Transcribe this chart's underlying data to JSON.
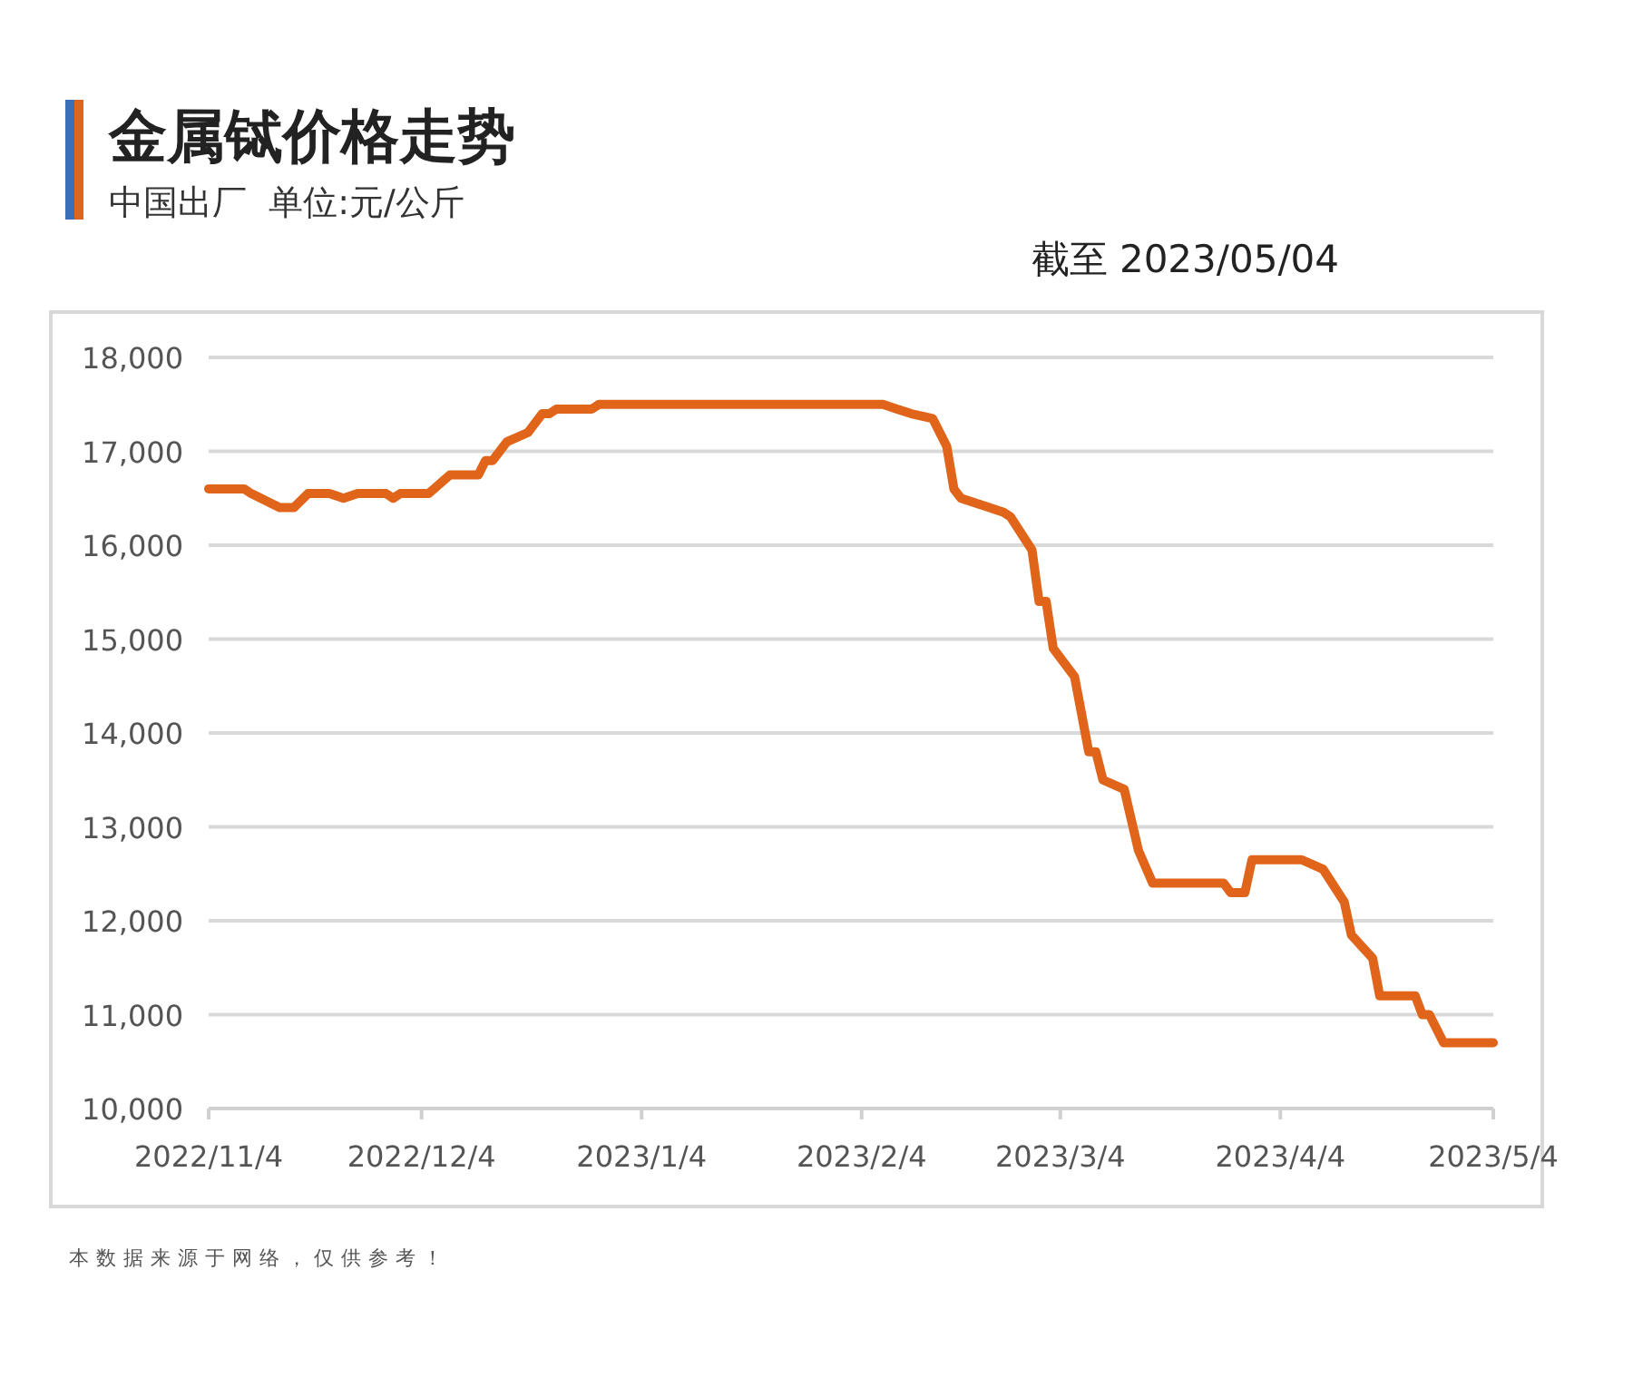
{
  "chart_data": {
    "type": "line",
    "title": "金属铽价格走势",
    "subtitle": "中国出厂  单位:元/公斤",
    "annotations": [
      "截至 2023/05/04",
      "本数据来源于网络，仅供参考！"
    ],
    "x": [
      "2022-11-04",
      "2022-11-09",
      "2022-11-10",
      "2022-11-14",
      "2022-11-16",
      "2022-11-18",
      "2022-11-21",
      "2022-11-23",
      "2022-11-25",
      "2022-11-29",
      "2022-11-30",
      "2022-12-01",
      "2022-12-05",
      "2022-12-08",
      "2022-12-12",
      "2022-12-13",
      "2022-12-14",
      "2022-12-16",
      "2022-12-19",
      "2022-12-21",
      "2022-12-22",
      "2022-12-23",
      "2022-12-28",
      "2022-12-29",
      "2023-02-07",
      "2023-02-09",
      "2023-02-11",
      "2023-02-14",
      "2023-02-16",
      "2023-02-17",
      "2023-02-18",
      "2023-02-22",
      "2023-02-24",
      "2023-02-25",
      "2023-02-28",
      "2023-03-01",
      "2023-03-02",
      "2023-03-03",
      "2023-03-06",
      "2023-03-08",
      "2023-03-09",
      "2023-03-10",
      "2023-03-13",
      "2023-03-15",
      "2023-03-17",
      "2023-03-27",
      "2023-03-28",
      "2023-03-30",
      "2023-03-31",
      "2023-04-07",
      "2023-04-10",
      "2023-04-13",
      "2023-04-14",
      "2023-04-17",
      "2023-04-18",
      "2023-04-23",
      "2023-04-24",
      "2023-04-25",
      "2023-04-27",
      "2023-05-04"
    ],
    "series": [
      {
        "color": "#e0641a",
        "values": [
          16600,
          16600,
          16550,
          16400,
          16400,
          16550,
          16550,
          16500,
          16550,
          16550,
          16500,
          16550,
          16550,
          16750,
          16750,
          16900,
          16900,
          17100,
          17200,
          17400,
          17400,
          17450,
          17450,
          17500,
          17500,
          17450,
          17400,
          17350,
          17050,
          16600,
          16500,
          16400,
          16350,
          16300,
          15950,
          15400,
          15400,
          14900,
          14600,
          13800,
          13800,
          13500,
          13400,
          12750,
          12400,
          12400,
          12300,
          12300,
          12650,
          12650,
          12550,
          12200,
          11850,
          11600,
          11200,
          11200,
          11000,
          11000,
          10700,
          10700
        ]
      }
    ],
    "xlim": [
      "2022-11-04",
      "2023-05-04"
    ],
    "xticks": [
      {
        "value": "2022-11-04",
        "label": "2022/11/4"
      },
      {
        "value": "2022-12-04",
        "label": "2022/12/4"
      },
      {
        "value": "2023-01-04",
        "label": "2023/1/4"
      },
      {
        "value": "2023-02-04",
        "label": "2023/2/4"
      },
      {
        "value": "2023-03-04",
        "label": "2023/3/4"
      },
      {
        "value": "2023-04-04",
        "label": "2023/4/4"
      },
      {
        "value": "2023-05-04",
        "label": "2023/5/4"
      }
    ],
    "ylim": [
      10000,
      18000
    ],
    "yticks": [
      {
        "value": 10000,
        "label": "10,000"
      },
      {
        "value": 11000,
        "label": "11,000"
      },
      {
        "value": 12000,
        "label": "12,000"
      },
      {
        "value": 13000,
        "label": "13,000"
      },
      {
        "value": 14000,
        "label": "14,000"
      },
      {
        "value": 15000,
        "label": "15,000"
      },
      {
        "value": 16000,
        "label": "16,000"
      },
      {
        "value": 17000,
        "label": "17,000"
      },
      {
        "value": 18000,
        "label": "18,000"
      }
    ],
    "grid": "y",
    "marker": "none",
    "line_style": "solid"
  }
}
